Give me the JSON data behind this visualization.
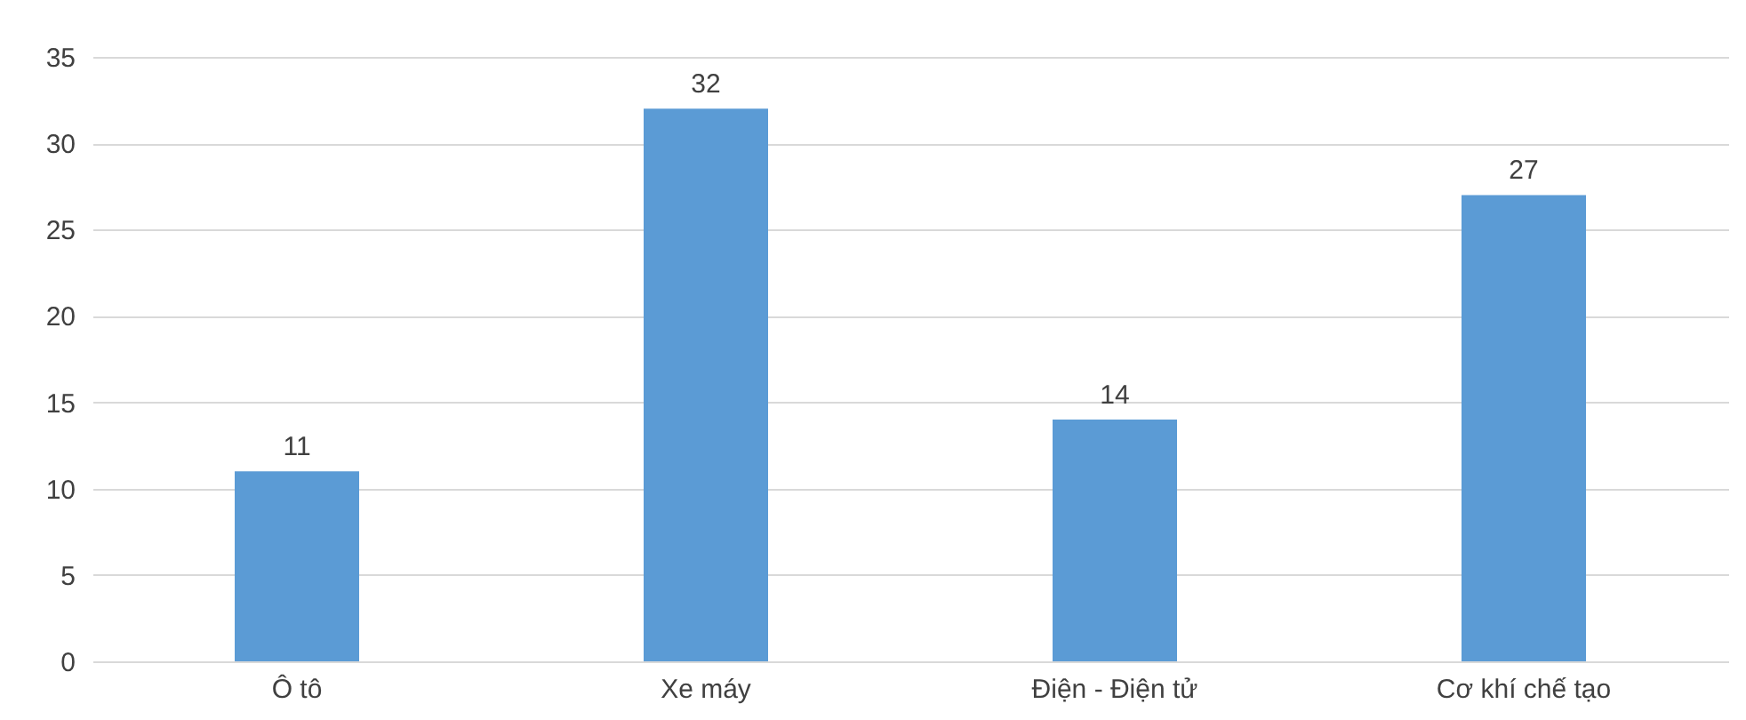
{
  "chart_data": {
    "type": "bar",
    "categories": [
      "Ô tô",
      "Xe máy",
      "Điện - Điện tử",
      "Cơ khí chế tạo"
    ],
    "values": [
      11,
      32,
      14,
      27
    ],
    "color": "#5b9bd5",
    "ylim": [
      0,
      35
    ],
    "yticks": [
      0,
      5,
      10,
      15,
      20,
      25,
      30,
      35
    ],
    "grid": "y",
    "data_labels": true
  }
}
